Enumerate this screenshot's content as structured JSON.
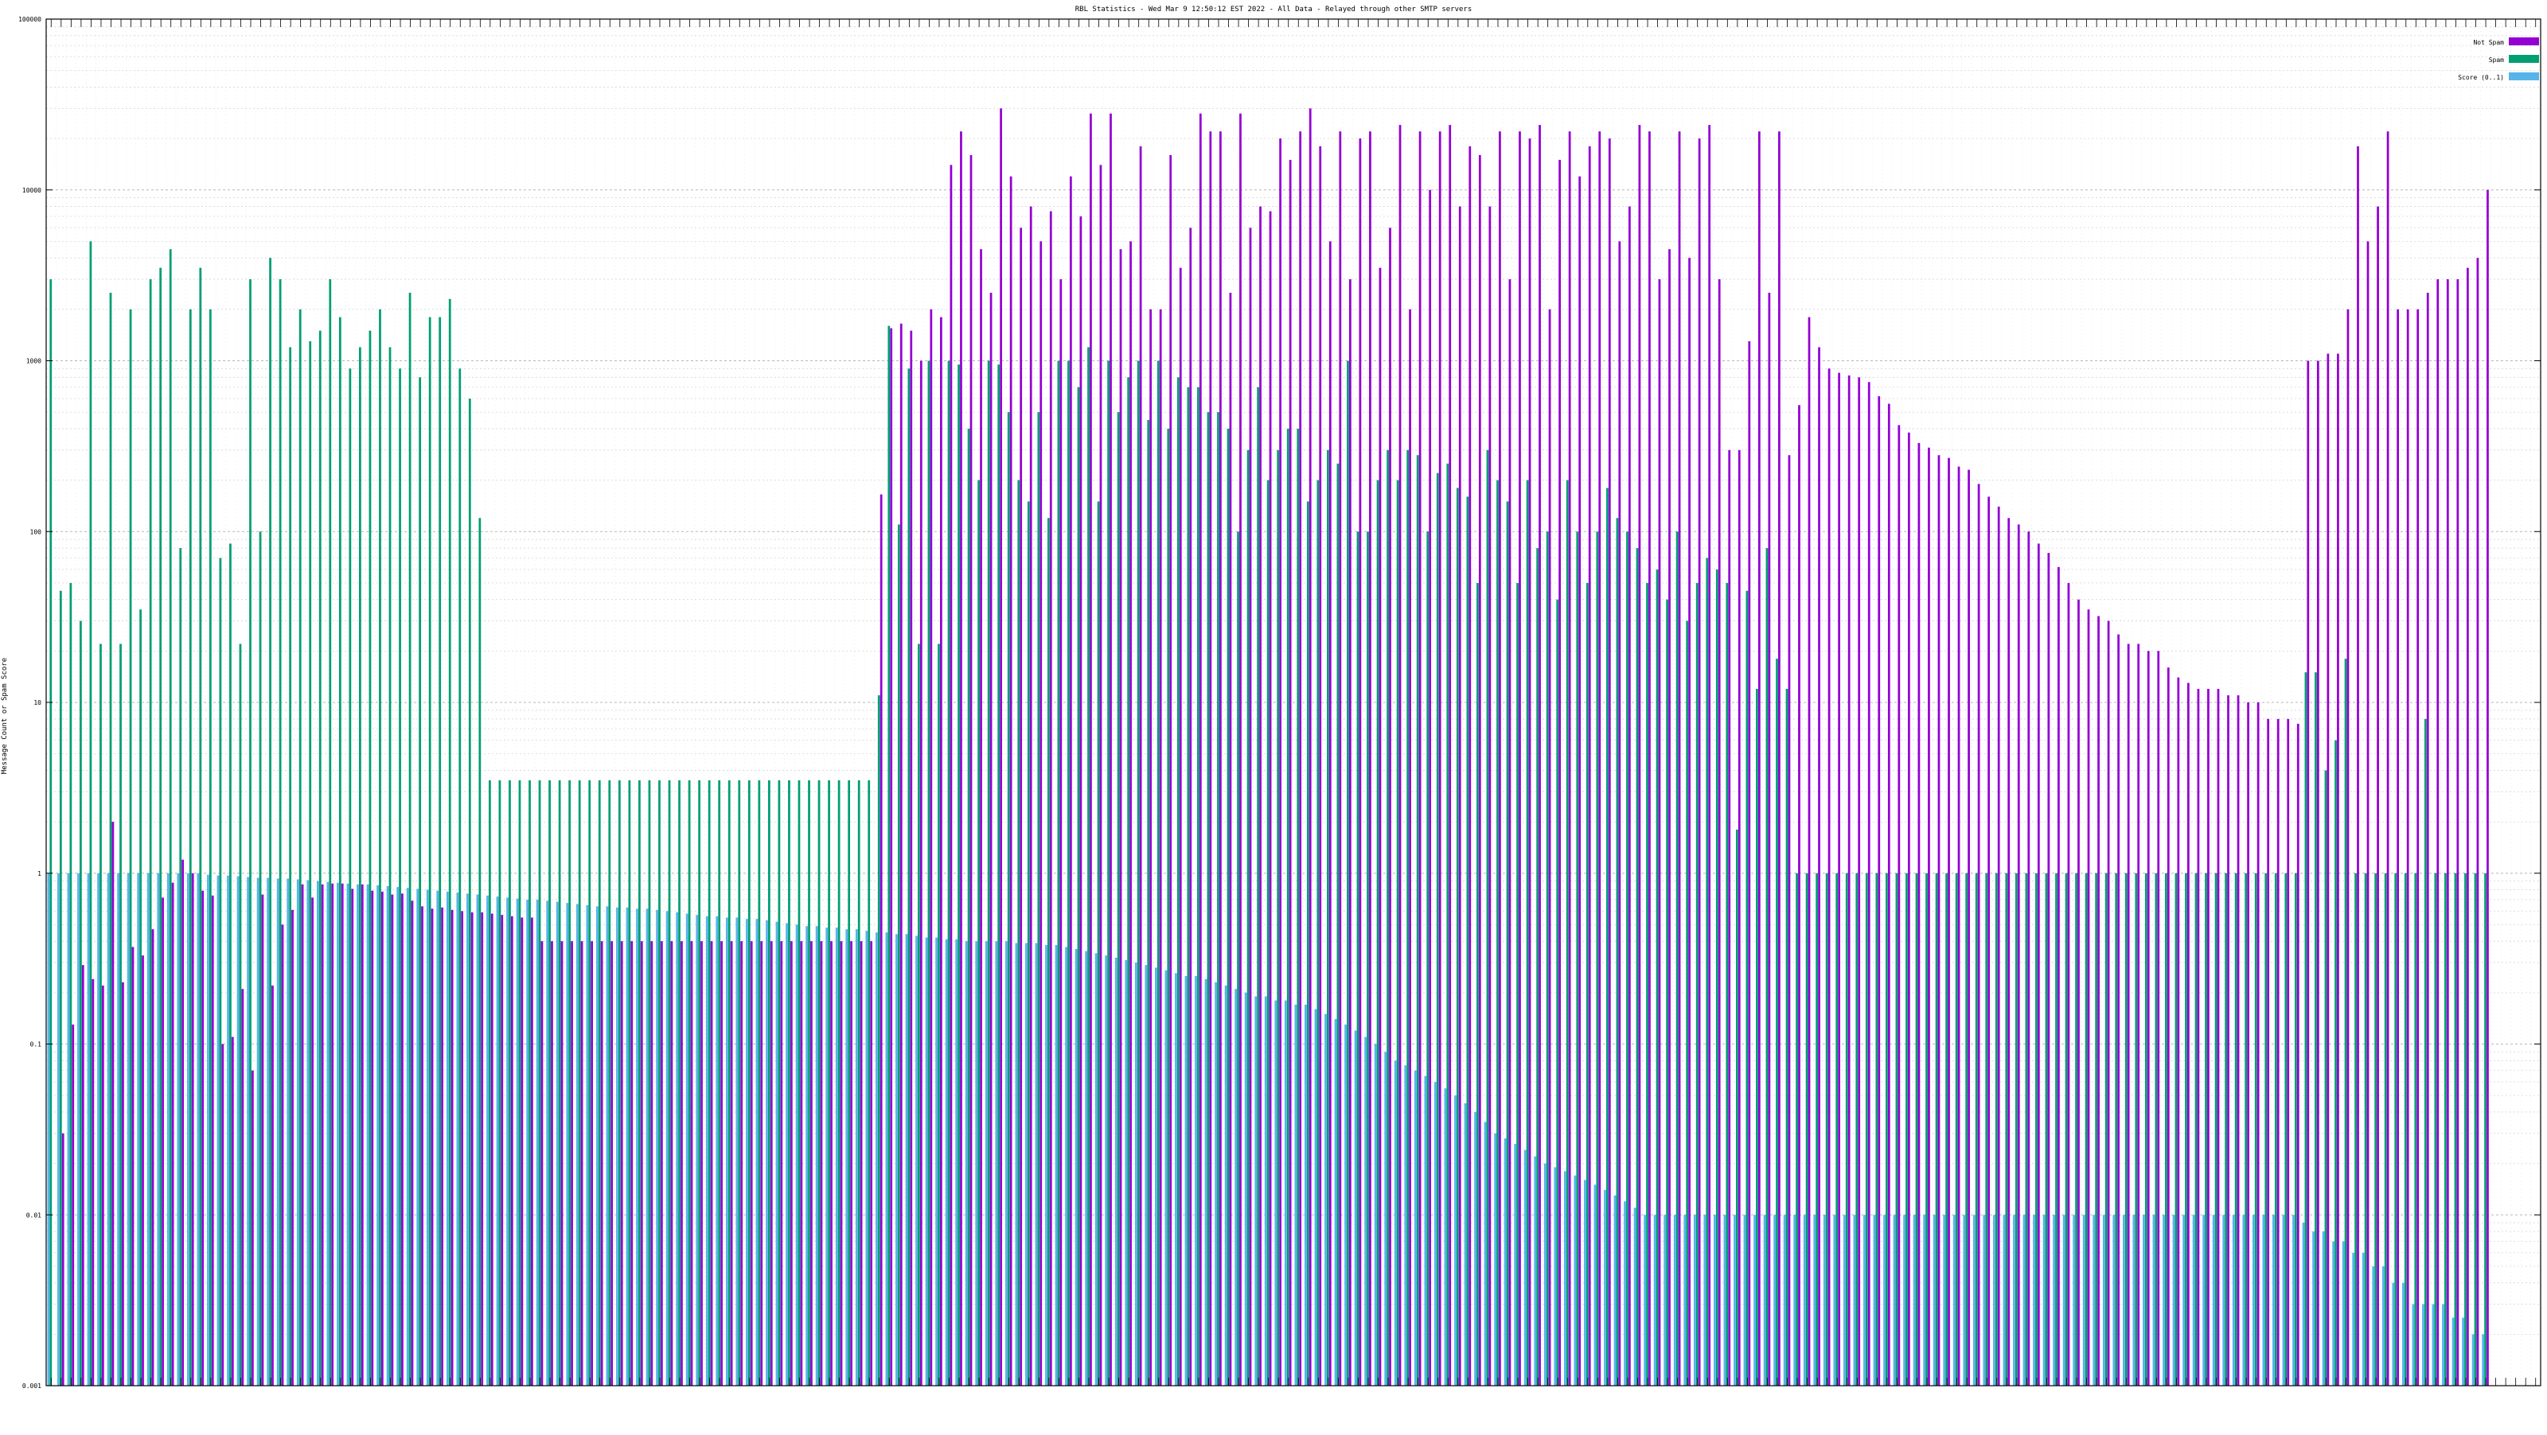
{
  "chart_data": {
    "type": "bar",
    "title": "RBL Statistics - Wed Mar  9 12:50:12 EST 2022 - All Data - Relayed through other SMTP servers",
    "ylabel": "Message Count or Spam Score",
    "xlabel": "",
    "yscale": "log",
    "ylim": [
      0.001,
      100000
    ],
    "yticks": [
      {
        "value": 0.001,
        "label": "0.001"
      },
      {
        "value": 0.01,
        "label": "0.01"
      },
      {
        "value": 0.1,
        "label": "0.1"
      },
      {
        "value": 1,
        "label": "1"
      },
      {
        "value": 10,
        "label": "10"
      },
      {
        "value": 100,
        "label": "100"
      },
      {
        "value": 1000,
        "label": "1000"
      },
      {
        "value": 10000,
        "label": "10000"
      },
      {
        "value": 100000,
        "label": "100000"
      }
    ],
    "grid": true,
    "legend_position": "top-right",
    "categories_count": 250,
    "series": [
      {
        "name": "Not Spam",
        "color": "#9400d3",
        "values": [
          null,
          0.03,
          0.13,
          0.29,
          0.24,
          0.22,
          2.0,
          0.23,
          0.37,
          0.33,
          0.47,
          0.72,
          0.88,
          1.2,
          1.0,
          0.79,
          0.74,
          0.1,
          0.11,
          0.21,
          0.07,
          0.75,
          0.22,
          0.5,
          0.61,
          0.86,
          0.72,
          0.86,
          0.87,
          0.87,
          0.81,
          0.86,
          0.79,
          0.78,
          0.75,
          0.76,
          0.69,
          0.64,
          0.62,
          0.63,
          0.61,
          0.6,
          0.59,
          0.59,
          0.58,
          0.57,
          0.56,
          0.55,
          0.55,
          0.4,
          0.4,
          0.4,
          0.4,
          0.4,
          0.4,
          0.4,
          0.4,
          0.4,
          0.4,
          0.4,
          0.4,
          0.4,
          0.4,
          0.4,
          0.4,
          0.4,
          0.4,
          0.4,
          0.4,
          0.4,
          0.4,
          0.4,
          0.4,
          0.4,
          0.4,
          0.4,
          0.4,
          0.4,
          0.4,
          0.4,
          0.4,
          0.4,
          0.4,
          165,
          1550,
          1650,
          1500,
          1000,
          2000,
          1800,
          14000,
          22000,
          16000,
          4500,
          2500,
          30000,
          12000,
          6000,
          8000,
          5000,
          7500,
          3000,
          12000,
          7000,
          28000,
          14000,
          28000,
          4500,
          5000,
          18000,
          2000,
          2000,
          16000,
          3500,
          6000,
          28000,
          22000,
          22000,
          2500,
          28000,
          6000,
          8000,
          7500,
          20000,
          15000,
          22000,
          30000,
          18000,
          5000,
          22000,
          3000,
          20000,
          22000,
          3500,
          6000,
          24000,
          2000,
          22000,
          10000,
          22000,
          24000,
          8000,
          18000,
          16000,
          8000,
          22000,
          3000,
          22000,
          20000,
          24000,
          2000,
          15000,
          22000,
          12000,
          18000,
          22000,
          20000,
          5000,
          8000,
          24000,
          22000,
          3000,
          4500,
          22000,
          4000,
          20000,
          24000,
          3000,
          300,
          300,
          1300,
          22000,
          2500,
          22000,
          280,
          550,
          1800,
          1200,
          900,
          850,
          820,
          800,
          750,
          620,
          560,
          420,
          380,
          330,
          310,
          280,
          270,
          240,
          230,
          190,
          160,
          140,
          120,
          110,
          100,
          85,
          75,
          62,
          50,
          40,
          35,
          32,
          30,
          25,
          22,
          22,
          20,
          20,
          16,
          14,
          13,
          12,
          12,
          12,
          11,
          11,
          10,
          10,
          8,
          8,
          8,
          7.5,
          1000,
          1000,
          1100,
          1100,
          2000,
          18000,
          5000,
          8000,
          22000,
          2000,
          2000,
          2000,
          2500,
          3000,
          3000,
          3000,
          3500,
          4000,
          10000
        ]
      },
      {
        "name": "Spam",
        "color": "#009e73",
        "values": [
          3000,
          45,
          50,
          30,
          5000,
          22,
          2500,
          22,
          2000,
          35,
          3000,
          3500,
          4500,
          80,
          2000,
          3500,
          2000,
          70,
          85,
          22,
          3000,
          100,
          4000,
          3000,
          1200,
          2000,
          1300,
          1500,
          3000,
          1800,
          900,
          1200,
          1500,
          2000,
          1200,
          900,
          2500,
          800,
          1800,
          1800,
          2300,
          900,
          600,
          120,
          3.5,
          3.5,
          3.5,
          3.5,
          3.5,
          3.5,
          3.5,
          3.5,
          3.5,
          3.5,
          3.5,
          3.5,
          3.5,
          3.5,
          3.5,
          3.5,
          3.5,
          3.5,
          3.5,
          3.5,
          3.5,
          3.5,
          3.5,
          3.5,
          3.5,
          3.5,
          3.5,
          3.5,
          3.5,
          3.5,
          3.5,
          3.5,
          3.5,
          3.5,
          3.5,
          3.5,
          3.5,
          3.5,
          3.5,
          11,
          1600,
          110,
          900,
          22,
          1000,
          22,
          1000,
          950,
          400,
          200,
          1000,
          950,
          500,
          200,
          150,
          500,
          120,
          1000,
          1000,
          700,
          1200,
          150,
          1000,
          500,
          800,
          1000,
          450,
          1000,
          400,
          800,
          700,
          700,
          500,
          500,
          400,
          100,
          300,
          700,
          200,
          300,
          400,
          400,
          150,
          200,
          300,
          250,
          1000,
          100,
          100,
          200,
          300,
          200,
          300,
          280,
          100,
          220,
          250,
          180,
          160,
          50,
          300,
          200,
          150,
          50,
          200,
          80,
          100,
          40,
          200,
          100,
          50,
          100,
          180,
          120,
          100,
          80,
          50,
          60,
          40,
          100,
          30,
          50,
          70,
          60,
          50,
          1.8,
          45,
          12,
          80,
          18,
          12,
          1,
          1,
          1,
          1,
          1,
          1,
          1,
          1,
          1,
          1,
          1,
          1,
          1,
          1,
          1,
          1,
          1,
          1,
          1,
          1,
          1,
          1,
          1,
          1,
          1,
          1,
          1,
          1,
          1,
          1,
          1,
          1,
          1,
          1,
          1,
          1,
          1,
          1,
          1,
          1,
          1,
          1,
          1,
          1,
          1,
          1,
          1,
          1,
          1,
          1,
          1,
          15,
          15,
          4,
          6,
          18,
          1,
          1,
          1,
          1,
          1,
          1,
          1,
          8,
          1,
          1,
          1,
          1,
          1,
          1
        ]
      },
      {
        "name": "Score (0..1)",
        "color": "#56b4e9",
        "values": [
          1,
          1,
          1,
          1,
          1,
          1,
          1,
          1,
          1,
          1,
          1,
          1,
          1,
          1,
          1,
          1,
          0.98,
          0.97,
          0.97,
          0.96,
          0.95,
          0.94,
          0.94,
          0.93,
          0.93,
          0.92,
          0.91,
          0.9,
          0.89,
          0.88,
          0.87,
          0.86,
          0.86,
          0.85,
          0.84,
          0.83,
          0.82,
          0.81,
          0.8,
          0.79,
          0.78,
          0.77,
          0.76,
          0.75,
          0.74,
          0.73,
          0.72,
          0.71,
          0.7,
          0.7,
          0.69,
          0.68,
          0.67,
          0.66,
          0.65,
          0.64,
          0.64,
          0.63,
          0.63,
          0.62,
          0.62,
          0.61,
          0.6,
          0.59,
          0.58,
          0.57,
          0.56,
          0.56,
          0.55,
          0.55,
          0.54,
          0.54,
          0.53,
          0.52,
          0.51,
          0.5,
          0.49,
          0.49,
          0.48,
          0.48,
          0.47,
          0.47,
          0.46,
          0.45,
          0.45,
          0.44,
          0.44,
          0.43,
          0.42,
          0.42,
          0.41,
          0.41,
          0.4,
          0.4,
          0.4,
          0.4,
          0.4,
          0.39,
          0.39,
          0.39,
          0.38,
          0.38,
          0.37,
          0.36,
          0.35,
          0.34,
          0.33,
          0.32,
          0.31,
          0.3,
          0.29,
          0.28,
          0.27,
          0.26,
          0.25,
          0.25,
          0.24,
          0.23,
          0.22,
          0.21,
          0.2,
          0.19,
          0.19,
          0.18,
          0.18,
          0.17,
          0.17,
          0.16,
          0.15,
          0.14,
          0.13,
          0.12,
          0.11,
          0.1,
          0.09,
          0.08,
          0.075,
          0.07,
          0.065,
          0.06,
          0.055,
          0.05,
          0.045,
          0.04,
          0.035,
          0.03,
          0.028,
          0.026,
          0.024,
          0.022,
          0.02,
          0.019,
          0.018,
          0.017,
          0.016,
          0.015,
          0.014,
          0.013,
          0.012,
          0.011,
          0.01,
          0.01,
          0.01,
          0.01,
          0.01,
          0.01,
          0.01,
          0.01,
          0.01,
          0.01,
          0.01,
          0.01,
          0.01,
          0.01,
          0.01,
          0.01,
          0.01,
          0.01,
          0.01,
          0.01,
          0.01,
          0.01,
          0.01,
          0.01,
          0.01,
          0.01,
          0.01,
          0.01,
          0.01,
          0.01,
          0.01,
          0.01,
          0.01,
          0.01,
          0.01,
          0.01,
          0.01,
          0.01,
          0.01,
          0.01,
          0.01,
          0.01,
          0.01,
          0.01,
          0.01,
          0.01,
          0.01,
          0.01,
          0.01,
          0.01,
          0.01,
          0.01,
          0.01,
          0.01,
          0.01,
          0.01,
          0.01,
          0.01,
          0.01,
          0.01,
          0.01,
          0.01,
          0.01,
          0.01,
          0.01,
          0.01,
          0.009,
          0.008,
          0.008,
          0.007,
          0.007,
          0.006,
          0.006,
          0.005,
          0.005,
          0.004,
          0.004,
          0.003,
          0.003,
          0.003,
          0.003,
          0.0025,
          0.0025,
          0.002,
          0.002
        ]
      }
    ],
    "legend": [
      {
        "label": "Not Spam",
        "color": "#9400d3"
      },
      {
        "label": "Spam",
        "color": "#009e73"
      },
      {
        "label": "Score (0..1)",
        "color": "#56b4e9"
      }
    ]
  }
}
